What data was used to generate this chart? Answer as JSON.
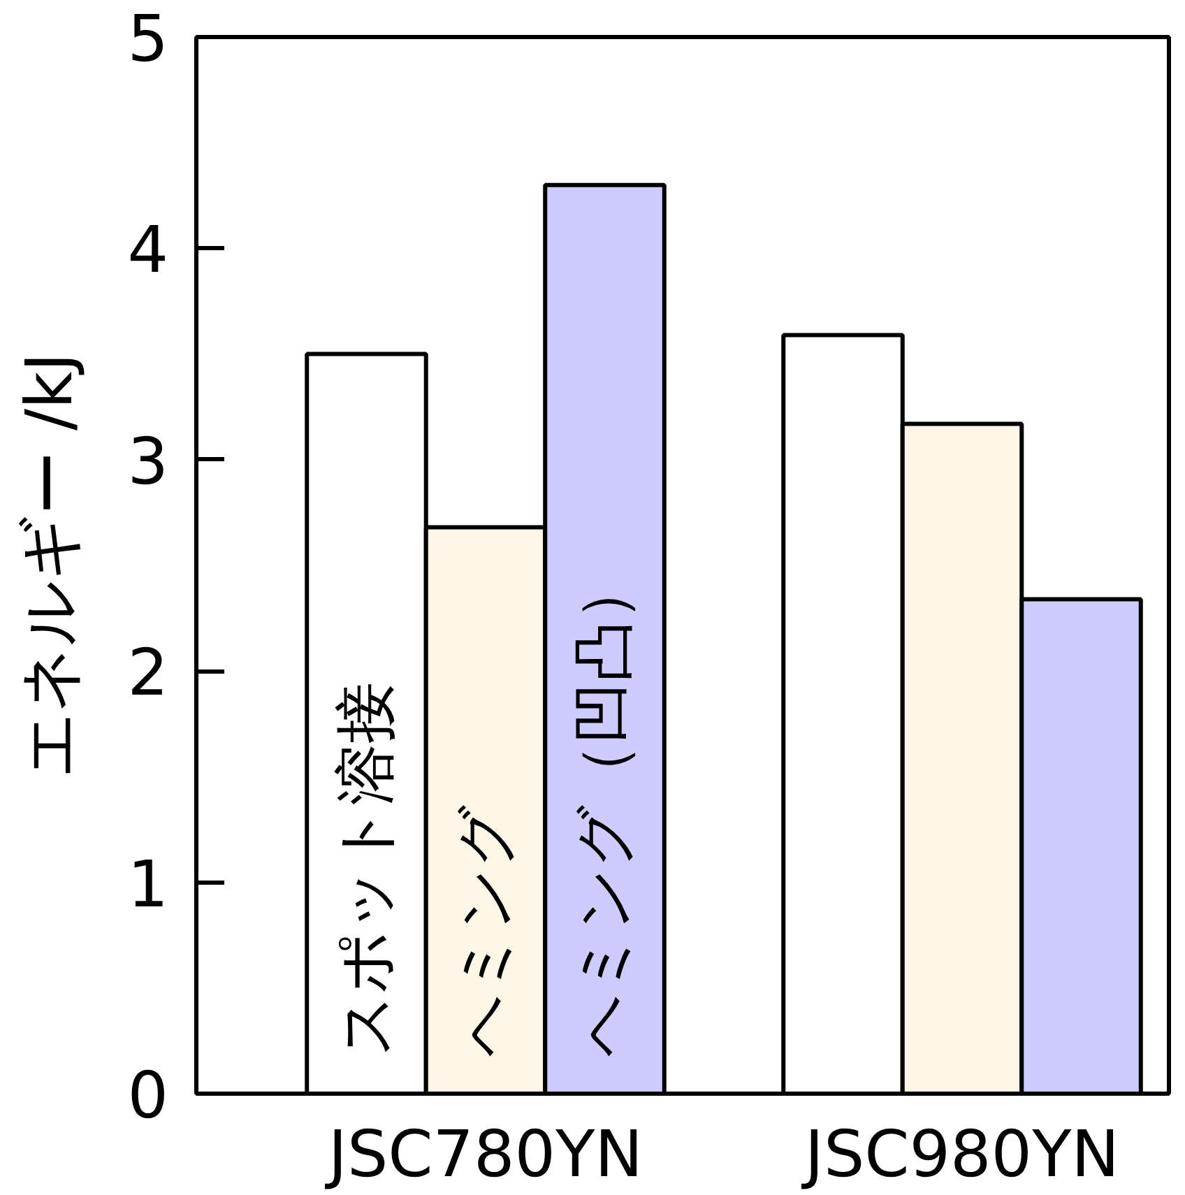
{
  "chart_data": {
    "type": "bar",
    "categories": [
      "JSC780YN",
      "JSC980YN"
    ],
    "ylabel": "エネルギー /kJ",
    "ylim": [
      0,
      5
    ],
    "yticks": [
      0,
      1,
      2,
      3,
      4,
      5
    ],
    "grid": false,
    "series": [
      {
        "name": "スポット溶接",
        "color": "#ffffff",
        "values": [
          3.5,
          3.59
        ]
      },
      {
        "name": "ヘミング",
        "color": "#fdf5e6",
        "values": [
          2.68,
          3.17
        ]
      },
      {
        "name": "ヘミング（凹凸）",
        "color": "#ccccff",
        "values": [
          4.3,
          2.34
        ]
      }
    ]
  }
}
